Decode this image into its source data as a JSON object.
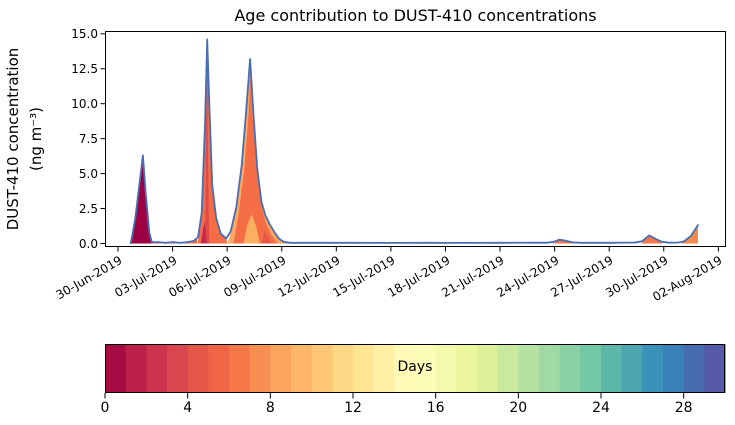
{
  "figure": {
    "title": "Age contribution to DUST-410 concentrations"
  },
  "y_axis": {
    "label_line1": "DUST-410 concentration",
    "label_line2": "(ng m⁻³)",
    "ticks": [
      {
        "value": 0.0,
        "label": "0.0"
      },
      {
        "value": 2.5,
        "label": "2.5"
      },
      {
        "value": 5.0,
        "label": "5.0"
      },
      {
        "value": 7.5,
        "label": "7.5"
      },
      {
        "value": 10.0,
        "label": "10.0"
      },
      {
        "value": 12.5,
        "label": "12.5"
      },
      {
        "value": 15.0,
        "label": "15.0"
      }
    ]
  },
  "x_axis": {
    "ticks": [
      {
        "day": 0,
        "label": "30-Jun-2019"
      },
      {
        "day": 3,
        "label": "03-Jul-2019"
      },
      {
        "day": 6,
        "label": "06-Jul-2019"
      },
      {
        "day": 9,
        "label": "09-Jul-2019"
      },
      {
        "day": 12,
        "label": "12-Jul-2019"
      },
      {
        "day": 15,
        "label": "15-Jul-2019"
      },
      {
        "day": 18,
        "label": "18-Jul-2019"
      },
      {
        "day": 21,
        "label": "21-Jul-2019"
      },
      {
        "day": 24,
        "label": "24-Jul-2019"
      },
      {
        "day": 27,
        "label": "27-Jul-2019"
      },
      {
        "day": 30,
        "label": "30-Jul-2019"
      },
      {
        "day": 33,
        "label": "02-Aug-2019"
      }
    ]
  },
  "colorbar": {
    "label": "Days",
    "range": [
      0,
      30
    ],
    "ticks": [
      {
        "value": 0,
        "label": "0"
      },
      {
        "value": 4,
        "label": "4"
      },
      {
        "value": 8,
        "label": "8"
      },
      {
        "value": 12,
        "label": "12"
      },
      {
        "value": 16,
        "label": "16"
      },
      {
        "value": 20,
        "label": "20"
      },
      {
        "value": 24,
        "label": "24"
      },
      {
        "value": 28,
        "label": "28"
      }
    ],
    "segment_colors": [
      "#a70b44",
      "#ba2049",
      "#cc344d",
      "#da464d",
      "#e55649",
      "#ef6545",
      "#f67848",
      "#f98e52",
      "#fca35c",
      "#fdb668",
      "#fec776",
      "#fed884",
      "#fee594",
      "#fff0a5",
      "#fffab6",
      "#fbfdb8",
      "#f3faac",
      "#eaf79f",
      "#dcf19a",
      "#c9e99e",
      "#b5e1a2",
      "#a0d9a4",
      "#89d0a5",
      "#72c7a5",
      "#5db8a9",
      "#4ca5b1",
      "#3b92b9",
      "#397fb8",
      "#486cb0",
      "#5759a9"
    ]
  },
  "chart_data": {
    "type": "area",
    "title": "Age contribution to DUST-410 concentrations",
    "xlabel": "",
    "ylabel": "DUST-410 concentration (ng m⁻³)",
    "x_unit": "days since 30-Jun-2019 00:00",
    "xlim_days": [
      -0.715,
      33.42
    ],
    "ylim": [
      -0.25,
      15.2
    ],
    "grid": false,
    "legend": "colorbar (age in days, Spectral colormap, 0–30, 30 one-day bins)",
    "total_line": {
      "color": "#4a6cb3",
      "width": 1.8,
      "points": [
        [
          0.7,
          0.02
        ],
        [
          0.78,
          0.55
        ],
        [
          0.95,
          1.8
        ],
        [
          1.37,
          6.3
        ],
        [
          1.52,
          3.6
        ],
        [
          1.72,
          0.8
        ],
        [
          1.86,
          0.1
        ],
        [
          2.2,
          0.1
        ],
        [
          2.6,
          0.05
        ],
        [
          3.0,
          0.1
        ],
        [
          3.45,
          0.05
        ],
        [
          3.8,
          0.1
        ],
        [
          4.15,
          0.18
        ],
        [
          4.4,
          0.45
        ],
        [
          4.6,
          2.2
        ],
        [
          4.78,
          8.5
        ],
        [
          4.9,
          14.6
        ],
        [
          5.02,
          10.0
        ],
        [
          5.18,
          4.2
        ],
        [
          5.4,
          1.8
        ],
        [
          5.65,
          0.7
        ],
        [
          5.95,
          0.35
        ],
        [
          6.2,
          0.9
        ],
        [
          6.5,
          2.6
        ],
        [
          6.8,
          5.6
        ],
        [
          7.05,
          9.6
        ],
        [
          7.26,
          13.2
        ],
        [
          7.45,
          9.2
        ],
        [
          7.65,
          5.4
        ],
        [
          7.88,
          3.0
        ],
        [
          8.1,
          2.0
        ],
        [
          8.35,
          1.35
        ],
        [
          8.6,
          0.8
        ],
        [
          8.85,
          0.35
        ],
        [
          9.1,
          0.12
        ],
        [
          9.45,
          0.05
        ],
        [
          11,
          0.05
        ],
        [
          13,
          0.05
        ],
        [
          15,
          0.04
        ],
        [
          17,
          0.05
        ],
        [
          19,
          0.04
        ],
        [
          21,
          0.05
        ],
        [
          23,
          0.06
        ],
        [
          23.6,
          0.06
        ],
        [
          23.95,
          0.12
        ],
        [
          24.25,
          0.27
        ],
        [
          24.6,
          0.2
        ],
        [
          25.0,
          0.08
        ],
        [
          25.5,
          0.05
        ],
        [
          27,
          0.05
        ],
        [
          28.4,
          0.07
        ],
        [
          28.8,
          0.16
        ],
        [
          29.2,
          0.58
        ],
        [
          29.55,
          0.33
        ],
        [
          29.9,
          0.12
        ],
        [
          30.3,
          0.06
        ],
        [
          30.8,
          0.07
        ],
        [
          31.1,
          0.14
        ],
        [
          31.5,
          0.55
        ],
        [
          31.88,
          1.32
        ]
      ]
    },
    "areas": [
      {
        "name": "peak1-orange-sliver",
        "age_days": "4-5",
        "color": "#e85b49",
        "points": [
          [
            0.7,
            0.02
          ],
          [
            0.74,
            0.45
          ],
          [
            0.95,
            0.25
          ],
          [
            1.1,
            0.02
          ]
        ]
      },
      {
        "name": "peak1-dark-red",
        "age_days": "0-1",
        "color": "#9e0142",
        "points": [
          [
            0.72,
            0
          ],
          [
            0.8,
            0.55
          ],
          [
            0.97,
            1.8
          ],
          [
            1.37,
            6.1
          ],
          [
            1.52,
            3.5
          ],
          [
            1.72,
            0.75
          ],
          [
            1.85,
            0
          ]
        ]
      },
      {
        "name": "baseline-strip-1",
        "age_days": "5-6",
        "color": "#f0683f",
        "points": [
          [
            1.86,
            0.08
          ],
          [
            2.2,
            0.09
          ],
          [
            2.6,
            0.05
          ],
          [
            3.0,
            0.09
          ],
          [
            3.45,
            0.05
          ],
          [
            3.8,
            0.09
          ],
          [
            4.15,
            0.16
          ],
          [
            4.35,
            0.3
          ]
        ]
      },
      {
        "name": "peak2-main",
        "age_days": "5-6",
        "color": "#f46d45",
        "points": [
          [
            4.38,
            0
          ],
          [
            4.6,
            2.2
          ],
          [
            4.78,
            8.5
          ],
          [
            4.9,
            14.45
          ],
          [
            5.02,
            9.9
          ],
          [
            5.18,
            4.1
          ],
          [
            5.4,
            1.75
          ],
          [
            5.65,
            0.65
          ],
          [
            5.95,
            0.3
          ],
          [
            6.02,
            0
          ]
        ]
      },
      {
        "name": "peak2-dark-streak",
        "age_days": "3-4",
        "color": "#dd4c4a",
        "points": [
          [
            4.8,
            0
          ],
          [
            4.85,
            9.5
          ],
          [
            4.9,
            13.8
          ],
          [
            4.94,
            7.0
          ],
          [
            4.99,
            2.0
          ],
          [
            5.03,
            0
          ]
        ]
      },
      {
        "name": "peak2-base-red",
        "age_days": "2-3",
        "color": "#c62a4b",
        "points": [
          [
            4.55,
            0
          ],
          [
            4.66,
            1.0
          ],
          [
            4.78,
            1.6
          ],
          [
            4.88,
            0
          ]
        ]
      },
      {
        "name": "peak3-light",
        "age_days": "8-9",
        "color": "#fca85f",
        "points": [
          [
            6.03,
            0
          ],
          [
            6.2,
            0.85
          ],
          [
            6.5,
            2.55
          ],
          [
            6.8,
            5.55
          ],
          [
            7.05,
            9.5
          ],
          [
            7.26,
            13.05
          ],
          [
            7.45,
            9.1
          ],
          [
            7.65,
            5.3
          ],
          [
            7.88,
            2.95
          ],
          [
            8.1,
            1.95
          ],
          [
            8.35,
            1.3
          ],
          [
            8.6,
            0.78
          ],
          [
            8.85,
            0.33
          ],
          [
            9.1,
            0.1
          ],
          [
            9.4,
            0
          ]
        ]
      },
      {
        "name": "peak3-core",
        "age_days": "6-7",
        "color": "#f46d45",
        "points": [
          [
            6.35,
            0
          ],
          [
            6.62,
            2.0
          ],
          [
            6.95,
            5.3
          ],
          [
            7.18,
            9.3
          ],
          [
            7.27,
            12.2
          ],
          [
            7.36,
            9.6
          ],
          [
            7.5,
            7.3
          ],
          [
            7.68,
            4.6
          ],
          [
            7.9,
            2.6
          ],
          [
            8.12,
            1.5
          ],
          [
            8.4,
            0.7
          ],
          [
            8.62,
            0.25
          ],
          [
            8.8,
            0
          ]
        ]
      },
      {
        "name": "peak3-bottom-light",
        "age_days": "8-9",
        "color": "#fdae61",
        "points": [
          [
            6.9,
            0
          ],
          [
            7.1,
            1.3
          ],
          [
            7.35,
            2.1
          ],
          [
            7.6,
            1.2
          ],
          [
            7.8,
            0
          ]
        ]
      },
      {
        "name": "peak3-bottom-red",
        "age_days": "4-5",
        "color": "#e8564a",
        "points": [
          [
            7.9,
            0
          ],
          [
            8.05,
            0.9
          ],
          [
            8.3,
            0.4
          ],
          [
            8.45,
            0
          ]
        ]
      },
      {
        "name": "baseline-strip-2",
        "age_days": "6-8",
        "color": "#f0683f",
        "points": [
          [
            9.4,
            0.04
          ],
          [
            12,
            0.04
          ],
          [
            16,
            0.03
          ],
          [
            20,
            0.04
          ],
          [
            23.6,
            0.05
          ]
        ]
      },
      {
        "name": "bump-24jul",
        "age_days": "6-7",
        "color": "#f4774a",
        "points": [
          [
            23.9,
            0
          ],
          [
            24.25,
            0.25
          ],
          [
            24.6,
            0.18
          ],
          [
            25.0,
            0.05
          ],
          [
            25.3,
            0
          ]
        ]
      },
      {
        "name": "baseline-strip-3",
        "age_days": "6-8",
        "color": "#f0683f",
        "points": [
          [
            25.3,
            0.04
          ],
          [
            27,
            0.04
          ],
          [
            28.5,
            0.05
          ]
        ]
      },
      {
        "name": "bump-29jul",
        "age_days": "6-7",
        "color": "#f4774a",
        "points": [
          [
            28.75,
            0
          ],
          [
            29.2,
            0.55
          ],
          [
            29.55,
            0.3
          ],
          [
            29.95,
            0
          ]
        ]
      },
      {
        "name": "final-rise",
        "age_days": "7-8",
        "color": "#f58a4d",
        "points": [
          [
            30.95,
            0
          ],
          [
            31.5,
            0.5
          ],
          [
            31.88,
            1.28
          ],
          [
            31.88,
            0
          ]
        ]
      }
    ]
  }
}
